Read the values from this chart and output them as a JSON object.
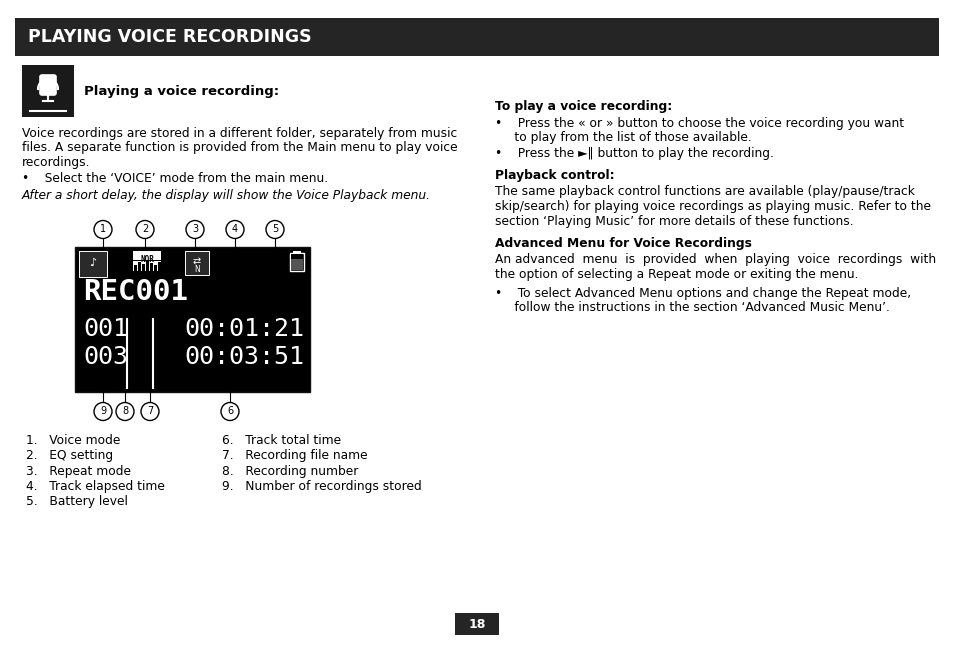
{
  "title": "PLAYING VOICE RECORDINGS",
  "title_bg": "#252525",
  "title_color": "#ffffff",
  "page_bg": "#ffffff",
  "page_number": "18",
  "left": {
    "section_header": "Playing a voice recording:",
    "body_lines": [
      "Voice recordings are stored in a different folder, separately from music",
      "files. A separate function is provided from the Main menu to play voice",
      "recordings."
    ],
    "bullet1": "•    Select the ‘VOICE’ mode from the main menu.",
    "italic_text": "After a short delay, the display will show the Voice Playback menu.",
    "display_title": "REC001",
    "display_line1": "001",
    "display_line2": "003",
    "display_time1": "00:01:21",
    "display_time2": "00:03:51",
    "list_left": [
      "1.   Voice mode",
      "2.   EQ setting",
      "3.   Repeat mode",
      "4.   Track elapsed time",
      "5.   Battery level"
    ],
    "list_right": [
      "6.   Track total time",
      "7.   Recording file name",
      "8.   Recording number",
      "9.   Number of recordings stored"
    ]
  },
  "right": {
    "header1": "To play a voice recording:",
    "b1_line1": "•    Press the « or » button to choose the voice recording you want",
    "b1_line2": "     to play from the list of those available.",
    "b2": "•    Press the ►‖ button to play the recording.",
    "header2": "Playback control:",
    "body2_lines": [
      "The same playback control functions are available (play/pause/track",
      "skip/search) for playing voice recordings as playing music. Refer to the",
      "section ‘Playing Music’ for more details of these functions."
    ],
    "header3": "Advanced Menu for Voice Recordings",
    "body3_lines": [
      "An advanced  menu  is  provided  when  playing  voice  recordings  with",
      "the option of selecting a Repeat mode or exiting the menu."
    ],
    "b3_line1": "•    To select Advanced Menu options and change the Repeat mode,",
    "b3_line2": "     follow the instructions in the section ‘Advanced Music Menu’."
  }
}
